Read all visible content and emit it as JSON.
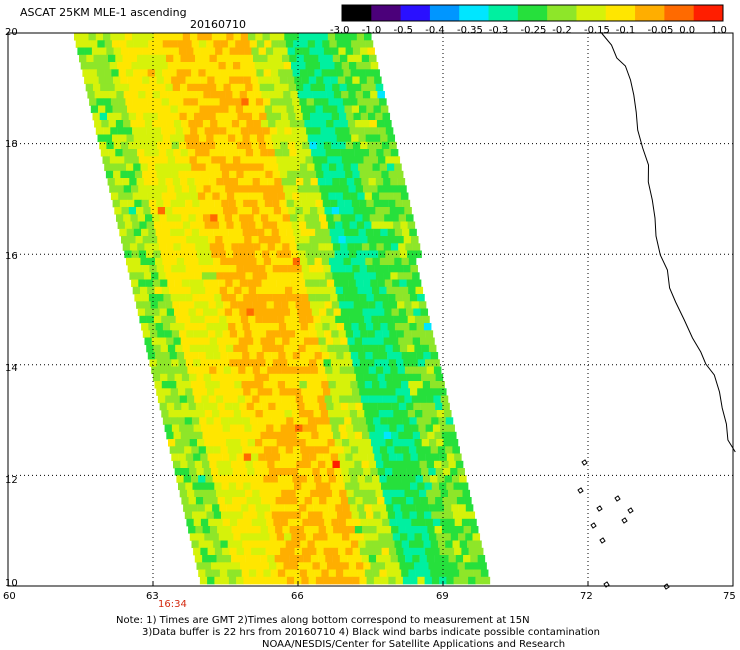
{
  "header": {
    "title": "ASCAT 25KM MLE-1 ascending",
    "date": "20160710"
  },
  "colorbar": {
    "ticks": [
      "-3.0",
      "-1.0",
      "-0.5",
      "-0.4",
      "-0.35",
      "-0.3",
      "-0.25",
      "-0.2",
      "-0.15",
      "-0.1",
      "-0.05",
      "0.0",
      "1.0"
    ],
    "colors": [
      "#000000",
      "#4b007a",
      "#2a10ff",
      "#0096ff",
      "#00e6ff",
      "#00f0a0",
      "#26e03c",
      "#8ee629",
      "#d6f20a",
      "#ffe600",
      "#ffae00",
      "#ff6a00",
      "#ff1e00"
    ]
  },
  "map": {
    "lat_ticks": [
      "20",
      "18",
      "16",
      "14",
      "12",
      "10"
    ],
    "lon_ticks": [
      "60",
      "63",
      "66",
      "69",
      "72",
      "75"
    ],
    "lat_range": [
      10,
      20
    ],
    "lon_range": [
      60,
      75
    ],
    "time_label": "16:34",
    "grid": "dotted"
  },
  "notes": {
    "line1": "Note: 1) Times are GMT 2)Times along bottom correspond to measurement at 15N",
    "line2": "3)Data buffer is 22 hrs from 20160710 4) Black wind barbs indicate possible contamination",
    "line3": "NOAA/NESDIS/Center for Satellite Applications and Research"
  },
  "colors": {
    "swath_core": "#f39a1f",
    "swath_mid": "#f7d51c",
    "swath_edge": "#3de36a",
    "coastline": "#000000"
  }
}
